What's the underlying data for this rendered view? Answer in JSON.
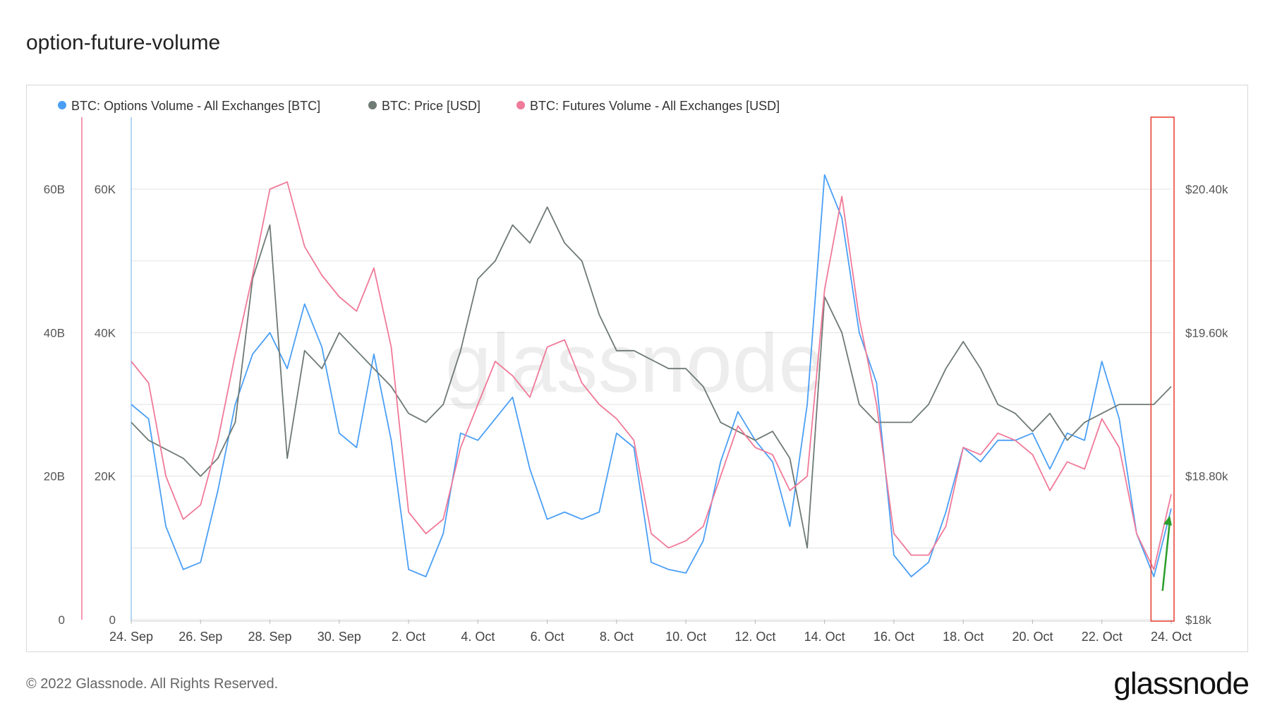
{
  "page": {
    "title": "option-future-volume",
    "footer": "© 2022 Glassnode. All Rights Reserved.",
    "brand": "glassnode",
    "watermark": "glassnode"
  },
  "chart_data": {
    "type": "line",
    "x_axis": {
      "type": "date",
      "range": [
        "2022-09-24",
        "2022-10-24"
      ],
      "ticks": [
        "24. Sep",
        "26. Sep",
        "28. Sep",
        "30. Sep",
        "2. Oct",
        "4. Oct",
        "6. Oct",
        "8. Oct",
        "10. Oct",
        "12. Oct",
        "14. Oct",
        "16. Oct",
        "18. Oct",
        "20. Oct",
        "22. Oct",
        "24. Oct"
      ]
    },
    "y_axes": [
      {
        "id": "futures",
        "range": [
          0,
          60000000000
        ],
        "ticks": [
          "0",
          "20B",
          "40B",
          "60B"
        ],
        "color": "#f07a99"
      },
      {
        "id": "options",
        "range": [
          0,
          60000
        ],
        "ticks": [
          "0",
          "20K",
          "40K",
          "60K"
        ],
        "color": "#4a9ff5"
      },
      {
        "id": "price",
        "range": [
          18000,
          20400
        ],
        "ticks": [
          "$18k",
          "$18.80k",
          "$19.60k",
          "$20.40k"
        ],
        "color": "#6e7a74"
      }
    ],
    "grid": true,
    "legend_position": "top-left",
    "series": [
      {
        "name": "BTC: Options Volume - All Exchanges [BTC]",
        "axis": "options",
        "color": "#4a9ff5",
        "points": [
          [
            "2022-09-24",
            30000
          ],
          [
            "2022-09-24T12",
            28000
          ],
          [
            "2022-09-25",
            13000
          ],
          [
            "2022-09-25T12",
            7000
          ],
          [
            "2022-09-26",
            8000
          ],
          [
            "2022-09-26T12",
            18000
          ],
          [
            "2022-09-27",
            30000
          ],
          [
            "2022-09-27T12",
            37000
          ],
          [
            "2022-09-28",
            40000
          ],
          [
            "2022-09-28T12",
            35000
          ],
          [
            "2022-09-29",
            44000
          ],
          [
            "2022-09-29T12",
            38000
          ],
          [
            "2022-09-30",
            26000
          ],
          [
            "2022-09-30T12",
            24000
          ],
          [
            "2022-10-01",
            37000
          ],
          [
            "2022-10-01T12",
            25000
          ],
          [
            "2022-10-02",
            7000
          ],
          [
            "2022-10-02T12",
            6000
          ],
          [
            "2022-10-03",
            12000
          ],
          [
            "2022-10-03T12",
            26000
          ],
          [
            "2022-10-04",
            25000
          ],
          [
            "2022-10-04T12",
            28000
          ],
          [
            "2022-10-05",
            31000
          ],
          [
            "2022-10-05T12",
            21000
          ],
          [
            "2022-10-06",
            14000
          ],
          [
            "2022-10-06T12",
            15000
          ],
          [
            "2022-10-07",
            14000
          ],
          [
            "2022-10-07T12",
            15000
          ],
          [
            "2022-10-08",
            26000
          ],
          [
            "2022-10-08T12",
            24000
          ],
          [
            "2022-10-09",
            8000
          ],
          [
            "2022-10-09T12",
            7000
          ],
          [
            "2022-10-10",
            6500
          ],
          [
            "2022-10-10T12",
            11000
          ],
          [
            "2022-10-11",
            22000
          ],
          [
            "2022-10-11T12",
            29000
          ],
          [
            "2022-10-12",
            25000
          ],
          [
            "2022-10-12T12",
            22000
          ],
          [
            "2022-10-13",
            13000
          ],
          [
            "2022-10-13T12",
            30000
          ],
          [
            "2022-10-14",
            62000
          ],
          [
            "2022-10-14T12",
            56000
          ],
          [
            "2022-10-15",
            40000
          ],
          [
            "2022-10-15T12",
            33000
          ],
          [
            "2022-10-16",
            9000
          ],
          [
            "2022-10-16T12",
            6000
          ],
          [
            "2022-10-17",
            8000
          ],
          [
            "2022-10-17T12",
            15000
          ],
          [
            "2022-10-18",
            24000
          ],
          [
            "2022-10-18T12",
            22000
          ],
          [
            "2022-10-19",
            25000
          ],
          [
            "2022-10-19T12",
            25000
          ],
          [
            "2022-10-20",
            26000
          ],
          [
            "2022-10-20T12",
            21000
          ],
          [
            "2022-10-21",
            26000
          ],
          [
            "2022-10-21T12",
            25000
          ],
          [
            "2022-10-22",
            36000
          ],
          [
            "2022-10-22T12",
            28000
          ],
          [
            "2022-10-23",
            12000
          ],
          [
            "2022-10-23T12",
            6000
          ],
          [
            "2022-10-24",
            15500
          ]
        ]
      },
      {
        "name": "BTC: Price [USD]",
        "axis": "price",
        "color": "#6e7a74",
        "points": [
          [
            "2022-09-24",
            19100
          ],
          [
            "2022-09-24T12",
            19000
          ],
          [
            "2022-09-25",
            18950
          ],
          [
            "2022-09-25T12",
            18900
          ],
          [
            "2022-09-26",
            18800
          ],
          [
            "2022-09-26T12",
            18900
          ],
          [
            "2022-09-27",
            19100
          ],
          [
            "2022-09-27T12",
            19900
          ],
          [
            "2022-09-28",
            20200
          ],
          [
            "2022-09-28T12",
            18900
          ],
          [
            "2022-09-29",
            19500
          ],
          [
            "2022-09-29T12",
            19400
          ],
          [
            "2022-09-30",
            19600
          ],
          [
            "2022-09-30T12",
            19500
          ],
          [
            "2022-10-01",
            19400
          ],
          [
            "2022-10-01T12",
            19300
          ],
          [
            "2022-10-02",
            19150
          ],
          [
            "2022-10-02T12",
            19100
          ],
          [
            "2022-10-03",
            19200
          ],
          [
            "2022-10-03T12",
            19500
          ],
          [
            "2022-10-04",
            19900
          ],
          [
            "2022-10-04T12",
            20000
          ],
          [
            "2022-10-05",
            20200
          ],
          [
            "2022-10-05T12",
            20100
          ],
          [
            "2022-10-06",
            20300
          ],
          [
            "2022-10-06T12",
            20100
          ],
          [
            "2022-10-07",
            20000
          ],
          [
            "2022-10-07T12",
            19700
          ],
          [
            "2022-10-08",
            19500
          ],
          [
            "2022-10-08T12",
            19500
          ],
          [
            "2022-10-09",
            19450
          ],
          [
            "2022-10-09T12",
            19400
          ],
          [
            "2022-10-10",
            19400
          ],
          [
            "2022-10-10T12",
            19300
          ],
          [
            "2022-10-11",
            19100
          ],
          [
            "2022-10-11T12",
            19050
          ],
          [
            "2022-10-12",
            19000
          ],
          [
            "2022-10-12T12",
            19050
          ],
          [
            "2022-10-13",
            18900
          ],
          [
            "2022-10-13T12",
            18400
          ],
          [
            "2022-10-14",
            19800
          ],
          [
            "2022-10-14T12",
            19600
          ],
          [
            "2022-10-15",
            19200
          ],
          [
            "2022-10-15T12",
            19100
          ],
          [
            "2022-10-16",
            19100
          ],
          [
            "2022-10-16T12",
            19100
          ],
          [
            "2022-10-17",
            19200
          ],
          [
            "2022-10-17T12",
            19400
          ],
          [
            "2022-10-18",
            19550
          ],
          [
            "2022-10-18T12",
            19400
          ],
          [
            "2022-10-19",
            19200
          ],
          [
            "2022-10-19T12",
            19150
          ],
          [
            "2022-10-20",
            19050
          ],
          [
            "2022-10-20T12",
            19150
          ],
          [
            "2022-10-21",
            19000
          ],
          [
            "2022-10-21T12",
            19100
          ],
          [
            "2022-10-22",
            19150
          ],
          [
            "2022-10-22T12",
            19200
          ],
          [
            "2022-10-23",
            19200
          ],
          [
            "2022-10-23T12",
            19200
          ],
          [
            "2022-10-24",
            19300
          ]
        ]
      },
      {
        "name": "BTC: Futures Volume - All Exchanges [USD]",
        "axis": "futures",
        "color": "#f07a99",
        "points": [
          [
            "2022-09-24",
            36000000000
          ],
          [
            "2022-09-24T12",
            33000000000
          ],
          [
            "2022-09-25",
            20000000000
          ],
          [
            "2022-09-25T12",
            14000000000
          ],
          [
            "2022-09-26",
            16000000000
          ],
          [
            "2022-09-26T12",
            25000000000
          ],
          [
            "2022-09-27",
            37000000000
          ],
          [
            "2022-09-27T12",
            48000000000
          ],
          [
            "2022-09-28",
            60000000000
          ],
          [
            "2022-09-28T12",
            61000000000
          ],
          [
            "2022-09-29",
            52000000000
          ],
          [
            "2022-09-29T12",
            48000000000
          ],
          [
            "2022-09-30",
            45000000000
          ],
          [
            "2022-09-30T12",
            43000000000
          ],
          [
            "2022-10-01",
            49000000000
          ],
          [
            "2022-10-01T12",
            38000000000
          ],
          [
            "2022-10-02",
            15000000000
          ],
          [
            "2022-10-02T12",
            12000000000
          ],
          [
            "2022-10-03",
            14000000000
          ],
          [
            "2022-10-03T12",
            24000000000
          ],
          [
            "2022-10-04",
            30000000000
          ],
          [
            "2022-10-04T12",
            36000000000
          ],
          [
            "2022-10-05",
            34000000000
          ],
          [
            "2022-10-05T12",
            31000000000
          ],
          [
            "2022-10-06",
            38000000000
          ],
          [
            "2022-10-06T12",
            39000000000
          ],
          [
            "2022-10-07",
            33000000000
          ],
          [
            "2022-10-07T12",
            30000000000
          ],
          [
            "2022-10-08",
            28000000000
          ],
          [
            "2022-10-08T12",
            25000000000
          ],
          [
            "2022-10-09",
            12000000000
          ],
          [
            "2022-10-09T12",
            10000000000
          ],
          [
            "2022-10-10",
            11000000000
          ],
          [
            "2022-10-10T12",
            13000000000
          ],
          [
            "2022-10-11",
            20000000000
          ],
          [
            "2022-10-11T12",
            27000000000
          ],
          [
            "2022-10-12",
            24000000000
          ],
          [
            "2022-10-12T12",
            23000000000
          ],
          [
            "2022-10-13",
            18000000000
          ],
          [
            "2022-10-13T12",
            20000000000
          ],
          [
            "2022-10-14",
            46000000000
          ],
          [
            "2022-10-14T12",
            59000000000
          ],
          [
            "2022-10-15",
            42000000000
          ],
          [
            "2022-10-15T12",
            30000000000
          ],
          [
            "2022-10-16",
            12000000000
          ],
          [
            "2022-10-16T12",
            9000000000
          ],
          [
            "2022-10-17",
            9000000000
          ],
          [
            "2022-10-17T12",
            13000000000
          ],
          [
            "2022-10-18",
            24000000000
          ],
          [
            "2022-10-18T12",
            23000000000
          ],
          [
            "2022-10-19",
            26000000000
          ],
          [
            "2022-10-19T12",
            25000000000
          ],
          [
            "2022-10-20",
            23000000000
          ],
          [
            "2022-10-20T12",
            18000000000
          ],
          [
            "2022-10-21",
            22000000000
          ],
          [
            "2022-10-21T12",
            21000000000
          ],
          [
            "2022-10-22",
            28000000000
          ],
          [
            "2022-10-22T12",
            24000000000
          ],
          [
            "2022-10-23",
            12000000000
          ],
          [
            "2022-10-23T12",
            7000000000
          ],
          [
            "2022-10-24",
            17500000000
          ]
        ]
      }
    ],
    "annotations": [
      {
        "kind": "highlight-box",
        "color": "#e63b2e",
        "from": "2022-10-23T10",
        "to": "2022-10-24"
      },
      {
        "kind": "arrow",
        "color": "#2a9d2a",
        "from": [
          "2022-10-23T18",
          6000
        ],
        "to": [
          "2022-10-24",
          14500
        ],
        "axis": "options"
      }
    ]
  }
}
